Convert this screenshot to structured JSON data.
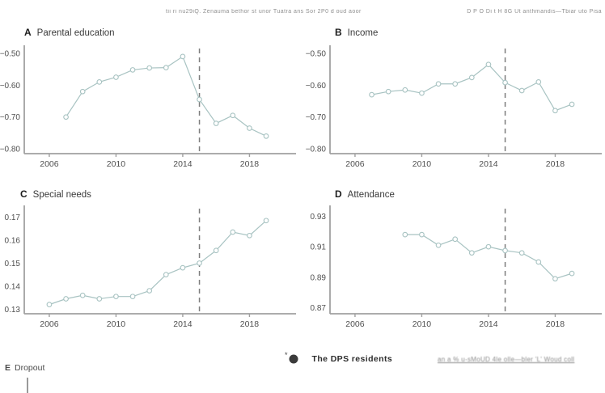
{
  "header": {
    "left_text": "tii ri nu29iQ. Zenauma bethor st unor Tuatra ans Sor 2P0 d oud aoor",
    "right_text": "D P O Di t  H 8G Ut anthmandis—Tbiar uto Pisa"
  },
  "colors": {
    "series": "#a8c3c2",
    "marker_fill": "#ffffff",
    "axis": "#a0a0a0",
    "dashed_line": "#7d7d7d",
    "tick_label": "#4f4f4f",
    "title_text": "#3a3a3a",
    "legend_dot": "#3b3b3b"
  },
  "legend": {
    "star": "*",
    "marker": "filled-circle",
    "label": "The DPS residents"
  },
  "footer": {
    "link_text": "an a % u-sMoUD 4le olle—bler 'L' Woud coll"
  },
  "panel_e": {
    "label": "E",
    "title": "Dropout"
  },
  "chart_data": [
    {
      "type": "line",
      "panel_label": "A",
      "title": "Parental education",
      "x": [
        2007,
        2008,
        2009,
        2010,
        2011,
        2012,
        2013,
        2014,
        2015,
        2016,
        2017,
        2018,
        2019
      ],
      "values": [
        -0.7,
        -0.62,
        -0.59,
        -0.575,
        -0.552,
        -0.546,
        -0.545,
        -0.51,
        -0.645,
        -0.72,
        -0.695,
        -0.735,
        -0.76
      ],
      "xlim": [
        2004.5,
        2020.5
      ],
      "ylim": [
        -0.815,
        -0.49
      ],
      "xticks": [
        2006,
        2010,
        2014,
        2018
      ],
      "xtick_labels": [
        "2006",
        "2010",
        "2014",
        "2018"
      ],
      "yticks": [
        -0.5,
        -0.6,
        -0.7,
        -0.8
      ],
      "ytick_labels": [
        "−0.50",
        "−0.60",
        "−0.70",
        "−0.80"
      ],
      "vline_x": 2015,
      "grid": false,
      "legend_position": "none"
    },
    {
      "type": "line",
      "panel_label": "B",
      "title": "Income",
      "x": [
        2007,
        2008,
        2009,
        2010,
        2011,
        2012,
        2013,
        2014,
        2015,
        2016,
        2017,
        2018,
        2019
      ],
      "values": [
        -0.63,
        -0.62,
        -0.615,
        -0.625,
        -0.596,
        -0.596,
        -0.576,
        -0.535,
        -0.592,
        -0.617,
        -0.59,
        -0.68,
        -0.66
      ],
      "xlim": [
        2004.5,
        2020.5
      ],
      "ylim": [
        -0.815,
        -0.49
      ],
      "xticks": [
        2006,
        2010,
        2014,
        2018
      ],
      "xtick_labels": [
        "2006",
        "2010",
        "2014",
        "2018"
      ],
      "yticks": [
        -0.5,
        -0.6,
        -0.7,
        -0.8
      ],
      "ytick_labels": [
        "−0.50",
        "−0.60",
        "−0.70",
        "−0.80"
      ],
      "vline_x": 2015,
      "grid": false,
      "legend_position": "none"
    },
    {
      "type": "line",
      "panel_label": "C",
      "title": "Special needs",
      "x": [
        2006,
        2007,
        2008,
        2009,
        2010,
        2011,
        2012,
        2013,
        2014,
        2015,
        2016,
        2017,
        2018,
        2019
      ],
      "values": [
        0.132,
        0.1345,
        0.136,
        0.1345,
        0.1355,
        0.1355,
        0.138,
        0.145,
        0.148,
        0.15,
        0.1555,
        0.1635,
        0.162,
        0.1685
      ],
      "xlim": [
        2004.5,
        2020.5
      ],
      "ylim": [
        0.128,
        0.173
      ],
      "xticks": [
        2006,
        2010,
        2014,
        2018
      ],
      "xtick_labels": [
        "2006",
        "2010",
        "2014",
        "2018"
      ],
      "yticks": [
        0.17,
        0.16,
        0.15,
        0.14,
        0.13
      ],
      "ytick_labels": [
        "0.17",
        "0.16",
        "0.15",
        "0.14",
        "0.13"
      ],
      "vline_x": 2015,
      "grid": false,
      "legend_position": "none"
    },
    {
      "type": "line",
      "panel_label": "D",
      "title": "Attendance",
      "x": [
        2009,
        2010,
        2011,
        2012,
        2013,
        2014,
        2015,
        2016,
        2017,
        2018,
        2019
      ],
      "values": [
        0.918,
        0.918,
        0.911,
        0.915,
        0.906,
        0.91,
        0.9075,
        0.906,
        0.9,
        0.889,
        0.8925
      ],
      "xlim": [
        2004.5,
        2020.5
      ],
      "ylim": [
        0.866,
        0.934
      ],
      "xticks": [
        2006,
        2010,
        2014,
        2018
      ],
      "xtick_labels": [
        "2006",
        "2010",
        "2014",
        "2018"
      ],
      "yticks": [
        0.93,
        0.91,
        0.89,
        0.87
      ],
      "ytick_labels": [
        "0.93",
        "0.91",
        "0.89",
        "0.87"
      ],
      "vline_x": 2015,
      "grid": false,
      "legend_position": "none"
    }
  ]
}
